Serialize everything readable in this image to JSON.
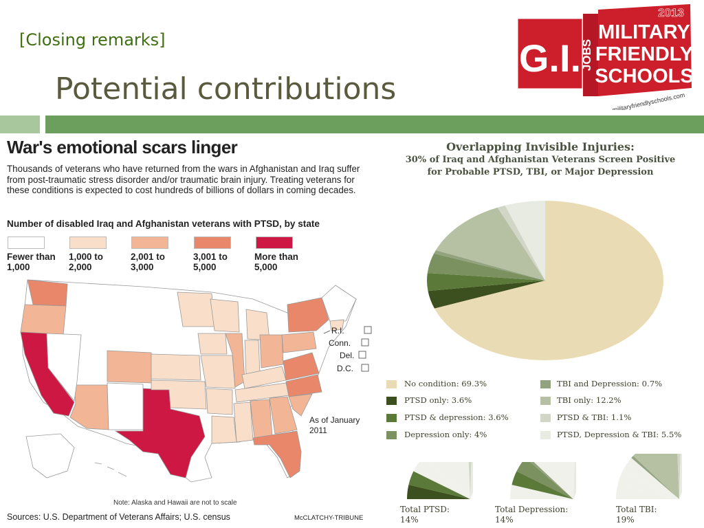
{
  "slide": {
    "section_label": "[Closing remarks]",
    "title": "Potential contributions"
  },
  "logo": {
    "gi": "G.I.",
    "jobs": "JOBS",
    "line1": "MILITARY",
    "line2": "FRIENDLY",
    "line3": "SCHOOLS",
    "year": "2013",
    "url": "militaryfriendlyschools.com"
  },
  "infographic": {
    "title": "War's emotional scars linger",
    "description": "Thousands of veterans who have returned from the wars in Afghanistan and Iraq suffer from post-traumatic stress disorder and/or traumatic brain injury. Treating veterans for these conditions is expected to cost hundreds of billions of dollars in coming decades.",
    "subtitle": "Number of disabled Iraq and Afghanistan veterans with PTSD, by state",
    "legend": [
      {
        "line1": "Fewer than",
        "line2": "1,000",
        "color": "#ffffff"
      },
      {
        "line1": "1,000 to",
        "line2": "2,000",
        "color": "#f9dfca"
      },
      {
        "line1": "2,001 to",
        "line2": "3,000",
        "color": "#f2b696"
      },
      {
        "line1": "3,001 to",
        "line2": "5,000",
        "color": "#e8876a"
      },
      {
        "line1": "More than",
        "line2": "5,000",
        "color": "#cc1842"
      }
    ],
    "small_states": [
      "R.I.",
      "Conn.",
      "Del.",
      "D.C."
    ],
    "as_of_line1": "As of January",
    "as_of_line2": "2011",
    "note": "Note: Alaska and Hawaii are not to scale",
    "sources": "Sources: U.S. Department of Veterans Affairs; U.S. census",
    "credit": "McCLATCHY-TRIBUNE"
  },
  "pie_section": {
    "heading": "Overlapping Invisible Injuries:",
    "subheading1": "30% of Iraq and Afghanistan Veterans Screen Positive",
    "subheading2": "for Probable PTSD, TBI, or Major Depression"
  },
  "chart_data": [
    {
      "type": "pie",
      "title": "Overlapping Invisible Injuries:",
      "categories": [
        "No condition",
        "PTSD only",
        "PTSD & depression",
        "Depression only",
        "TBI and Depression",
        "TBI only",
        "PTSD & TBI",
        "PTSD, Depression & TBI"
      ],
      "values": [
        69.3,
        3.6,
        3.6,
        4,
        0.7,
        12.2,
        1.1,
        5.5
      ],
      "colors": [
        "#e9dcb4",
        "#3c4f1e",
        "#5b7a39",
        "#7b9160",
        "#93a37f",
        "#b6c1a4",
        "#d1d6c6",
        "#e7ebe2"
      ],
      "legend_labels": [
        "No condition: 69.3%",
        "PTSD only: 3.6%",
        "PTSD & depression: 3.6%",
        "Depression only: 4%",
        "TBI and Depression: 0.7%",
        "TBI only: 12.2%",
        "PTSD & TBI: 1.1%",
        "PTSD, Depression & TBI: 5.5%"
      ],
      "legend_position": "bottom"
    },
    {
      "type": "pie",
      "title": "Total PTSD:",
      "value_label": "14%",
      "highlighted": [
        "PTSD only",
        "PTSD & depression",
        "PTSD & TBI",
        "PTSD, Depression & TBI"
      ]
    },
    {
      "type": "pie",
      "title": "Total Depression:",
      "value_label": "14%",
      "highlighted": [
        "PTSD & depression",
        "Depression only",
        "TBI and Depression",
        "PTSD, Depression & TBI"
      ]
    },
    {
      "type": "pie",
      "title": "Total TBI:",
      "value_label": "19%",
      "highlighted": [
        "TBI and Depression",
        "TBI only",
        "PTSD & TBI",
        "PTSD, Depression & TBI"
      ]
    }
  ]
}
